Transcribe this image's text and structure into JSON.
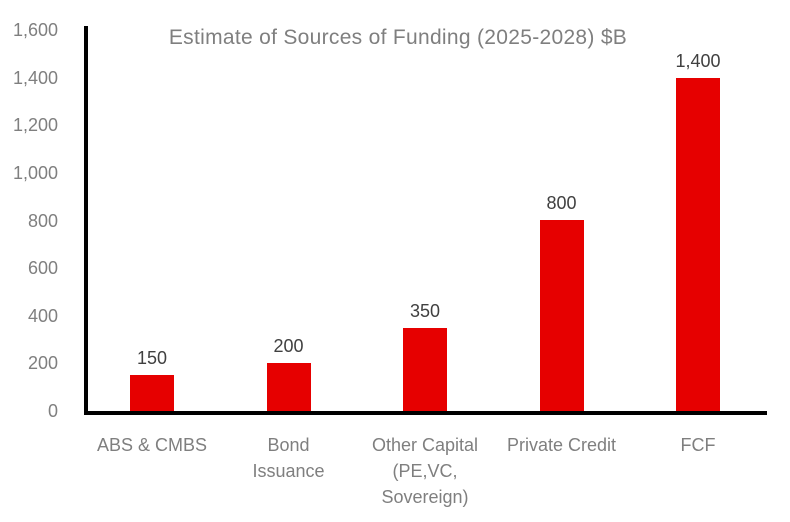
{
  "page": {
    "background": "#ffffff"
  },
  "chart_data": {
    "type": "bar",
    "title": "Estimate of Sources of Funding (2025-2028) $B",
    "categories": [
      "ABS & CMBS",
      "Bond Issuance",
      "Other Capital (PE,VC, Sovereign)",
      "Private Credit",
      "FCF"
    ],
    "category_label_lines": [
      [
        "ABS & CMBS"
      ],
      [
        "Bond",
        "Issuance"
      ],
      [
        "Other Capital",
        "(PE,VC,",
        "Sovereign)"
      ],
      [
        "Private Credit"
      ],
      [
        "FCF"
      ]
    ],
    "values": [
      150,
      200,
      350,
      800,
      1400
    ],
    "data_labels": [
      "150",
      "200",
      "350",
      "800",
      "1,400"
    ],
    "xlabel": "",
    "ylabel": "",
    "ylim": [
      0,
      1600
    ],
    "ytick_interval": 200,
    "ytick_labels": [
      "0",
      "200",
      "400",
      "600",
      "800",
      "1,000",
      "1,200",
      "1,400",
      "1,600"
    ],
    "grid": false,
    "legend": "none",
    "colors": {
      "bar": "#e60000",
      "axis": "#000000",
      "axis_label": "#7f7f7f",
      "data_label": "#404040",
      "title": "#7f7f7f"
    }
  }
}
